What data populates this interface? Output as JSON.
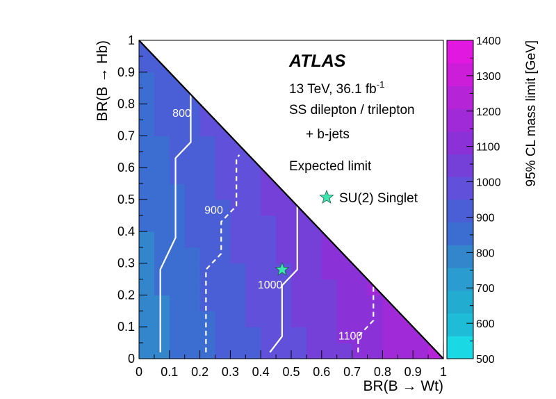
{
  "chart_data": {
    "type": "heatmap",
    "xlabel": "BR(B → Wt)",
    "ylabel": "BR(B → Hb)",
    "zlabel": "95% CL mass limit [GeV]",
    "xlim": [
      0,
      1
    ],
    "ylim": [
      0,
      1
    ],
    "zlim": [
      500,
      1400
    ],
    "x_ticks": [
      "0",
      "0.1",
      "0.2",
      "0.3",
      "0.4",
      "0.5",
      "0.6",
      "0.7",
      "0.8",
      "0.9",
      "1"
    ],
    "y_ticks": [
      "0",
      "0.1",
      "0.2",
      "0.3",
      "0.4",
      "0.5",
      "0.6",
      "0.7",
      "0.8",
      "0.9",
      "1"
    ],
    "z_ticks": [
      "500",
      "600",
      "700",
      "800",
      "900",
      "1000",
      "1100",
      "1200",
      "1300",
      "1400"
    ],
    "colorscale": [
      "#1ad8e4",
      "#1fbcd8",
      "#22acd0",
      "#2b9cd0",
      "#3386cc",
      "#3b6ed0",
      "#4a5ed6",
      "#6050da",
      "#7440d8",
      "#8a32d8",
      "#a02ad8",
      "#b624d8",
      "#cc1ed8",
      "#e018e0"
    ],
    "annotations": {
      "experiment": "ATLAS",
      "energy_prefix": "13 TeV, 36.1 fb",
      "energy_superscript": "-1",
      "channel_line1": "SS dilepton / trilepton",
      "channel_line2": "+ b-jets",
      "limit_type": "Expected limit",
      "marker_label": "SU(2) Singlet"
    },
    "marker": {
      "x": 0.47,
      "y": 0.28,
      "color": "#3ee6b0"
    },
    "contours": [
      {
        "label": "800",
        "style": "solid",
        "points": [
          [
            0.07,
            0.02
          ],
          [
            0.07,
            0.28
          ],
          [
            0.12,
            0.38
          ],
          [
            0.12,
            0.63
          ],
          [
            0.17,
            0.68
          ],
          [
            0.17,
            0.83
          ]
        ]
      },
      {
        "label": "900",
        "style": "dashed",
        "points": [
          [
            0.22,
            0.02
          ],
          [
            0.22,
            0.28
          ],
          [
            0.27,
            0.33
          ],
          [
            0.27,
            0.43
          ],
          [
            0.32,
            0.48
          ],
          [
            0.32,
            0.63
          ],
          [
            0.33,
            0.64
          ]
        ]
      },
      {
        "label": "1000",
        "style": "solid",
        "points": [
          [
            0.43,
            0.02
          ],
          [
            0.47,
            0.07
          ],
          [
            0.47,
            0.23
          ],
          [
            0.52,
            0.28
          ],
          [
            0.52,
            0.48
          ]
        ]
      },
      {
        "label": "1100",
        "style": "dashed",
        "points": [
          [
            0.72,
            0.02
          ],
          [
            0.72,
            0.07
          ],
          [
            0.77,
            0.12
          ],
          [
            0.77,
            0.23
          ]
        ]
      }
    ],
    "contour_labels": [
      {
        "text": "800",
        "x": 0.11,
        "y": 0.76
      },
      {
        "text": "900",
        "x": 0.215,
        "y": 0.455
      },
      {
        "text": "1000",
        "x": 0.39,
        "y": 0.22
      },
      {
        "text": "1100",
        "x": 0.655,
        "y": 0.06
      }
    ],
    "z_model": {
      "base": 765,
      "wt_coef": 455,
      "hb_coef": 120
    }
  }
}
